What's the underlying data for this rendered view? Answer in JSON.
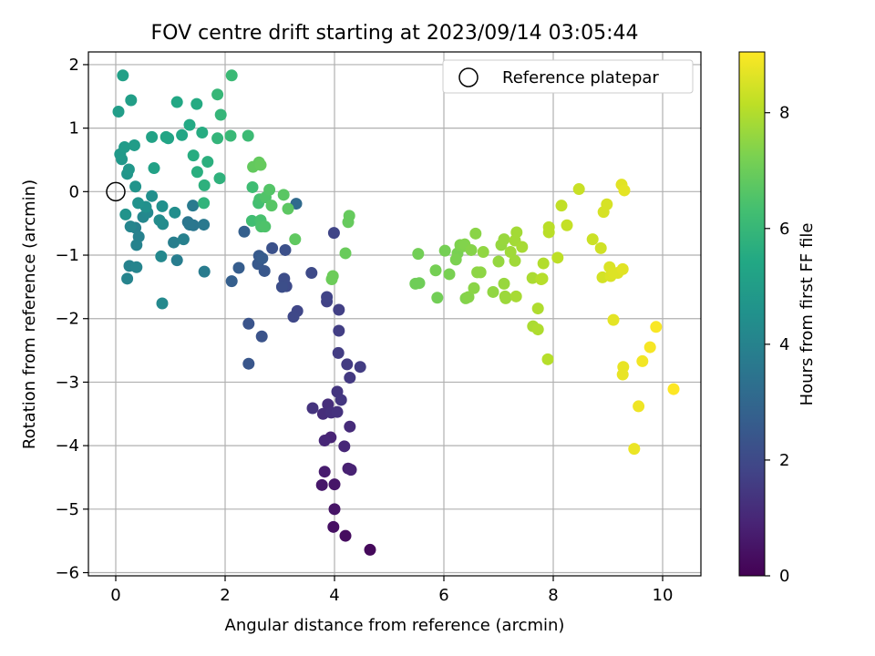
{
  "chart_data": {
    "type": "scatter",
    "title": "FOV centre drift starting at 2023/09/14 03:05:44",
    "xlabel": "Angular distance from reference (arcmin)",
    "ylabel": "Rotation from reference (arcmin)",
    "xlim": [
      -0.5,
      10.7
    ],
    "ylim": [
      -6.05,
      2.2
    ],
    "xticks": [
      "0",
      "2",
      "4",
      "6",
      "8",
      "10"
    ],
    "yticks": [
      "2",
      "1",
      "0",
      "−1",
      "−2",
      "−3",
      "−4",
      "−5",
      "−6"
    ],
    "grid": true,
    "legend": {
      "placement": "top-right",
      "entries": [
        "Reference platepar"
      ]
    },
    "reference_point": {
      "x": 0,
      "y": 0,
      "label": "Reference platepar"
    },
    "colorbar": {
      "label": "Hours from first FF file",
      "range": [
        0,
        9.05
      ],
      "ticks": [
        "0",
        "2",
        "4",
        "6",
        "8"
      ],
      "colormap": "viridis"
    },
    "points": [
      [
        4.65,
        -5.64,
        0.2
      ],
      [
        4.2,
        -5.42,
        0.3
      ],
      [
        3.98,
        -5.28,
        0.4
      ],
      [
        4.0,
        -5.0,
        0.5
      ],
      [
        4.0,
        -4.61,
        0.55
      ],
      [
        3.77,
        -4.62,
        0.6
      ],
      [
        3.82,
        -4.41,
        0.7
      ],
      [
        4.25,
        -4.36,
        0.8
      ],
      [
        4.3,
        -4.38,
        0.85
      ],
      [
        3.93,
        -3.87,
        0.9
      ],
      [
        3.82,
        -3.92,
        1.0
      ],
      [
        4.18,
        -4.01,
        1.0
      ],
      [
        4.28,
        -3.7,
        1.1
      ],
      [
        3.79,
        -3.5,
        1.15
      ],
      [
        3.88,
        -3.35,
        1.2
      ],
      [
        3.94,
        -3.48,
        1.25
      ],
      [
        4.05,
        -3.47,
        1.3
      ],
      [
        3.6,
        -3.41,
        1.35
      ],
      [
        4.05,
        -3.15,
        1.4
      ],
      [
        4.12,
        -3.28,
        1.45
      ],
      [
        4.28,
        -2.93,
        1.5
      ],
      [
        4.23,
        -2.72,
        1.55
      ],
      [
        4.47,
        -2.76,
        1.6
      ],
      [
        4.07,
        -2.54,
        1.6
      ],
      [
        4.08,
        -2.19,
        1.65
      ],
      [
        4.08,
        -1.86,
        1.7
      ],
      [
        3.86,
        -1.73,
        1.75
      ],
      [
        3.86,
        -1.66,
        1.8
      ],
      [
        3.99,
        -0.65,
        1.85
      ],
      [
        3.32,
        -1.88,
        1.9
      ],
      [
        3.25,
        -1.97,
        1.95
      ],
      [
        3.58,
        -1.28,
        2.0
      ],
      [
        3.12,
        -1.49,
        2.05
      ],
      [
        3.08,
        -1.37,
        2.1
      ],
      [
        3.04,
        -1.5,
        2.15
      ],
      [
        3.1,
        -0.92,
        2.2
      ],
      [
        2.86,
        -0.89,
        2.25
      ],
      [
        2.67,
        -2.28,
        2.3
      ],
      [
        2.43,
        -2.08,
        2.35
      ],
      [
        2.43,
        -2.71,
        2.4
      ],
      [
        2.72,
        -1.25,
        2.45
      ],
      [
        2.6,
        -1.14,
        2.5
      ],
      [
        2.62,
        -1.01,
        2.55
      ],
      [
        2.68,
        -1.05,
        2.6
      ],
      [
        2.25,
        -1.2,
        2.65
      ],
      [
        2.12,
        -1.41,
        2.7
      ],
      [
        2.35,
        -0.63,
        2.75
      ],
      [
        3.3,
        -0.19,
        3.1
      ],
      [
        1.32,
        -0.48,
        3.5
      ],
      [
        1.42,
        -0.53,
        3.55
      ],
      [
        1.35,
        -0.52,
        3.6
      ],
      [
        1.61,
        -0.52,
        3.65
      ],
      [
        1.41,
        -0.22,
        3.7
      ],
      [
        1.62,
        -1.26,
        3.75
      ],
      [
        1.12,
        -1.08,
        3.8
      ],
      [
        1.06,
        -0.8,
        3.85
      ],
      [
        1.24,
        -0.75,
        3.9
      ],
      [
        0.36,
        -0.57,
        3.9
      ],
      [
        0.42,
        -0.71,
        3.95
      ],
      [
        0.38,
        -0.84,
        4.0
      ],
      [
        0.25,
        -1.17,
        4.0
      ],
      [
        0.38,
        -1.19,
        4.05
      ],
      [
        0.21,
        -1.37,
        4.05
      ],
      [
        0.27,
        -0.55,
        4.1
      ],
      [
        0.5,
        -0.4,
        4.15
      ],
      [
        0.58,
        -0.33,
        4.2
      ],
      [
        0.83,
        -1.02,
        4.2
      ],
      [
        0.85,
        -1.76,
        4.25
      ],
      [
        0.86,
        -0.51,
        4.3
      ],
      [
        0.8,
        -0.45,
        4.35
      ],
      [
        1.08,
        -0.33,
        4.4
      ],
      [
        0.66,
        -0.07,
        4.45
      ],
      [
        0.85,
        -0.23,
        4.5
      ],
      [
        0.55,
        -0.24,
        4.5
      ],
      [
        0.41,
        -0.18,
        4.55
      ],
      [
        0.18,
        -0.36,
        4.6
      ],
      [
        0.36,
        0.08,
        4.65
      ],
      [
        0.21,
        0.28,
        4.7
      ],
      [
        0.24,
        0.35,
        4.75
      ],
      [
        0.11,
        0.51,
        4.8
      ],
      [
        0.08,
        0.59,
        4.85
      ],
      [
        0.16,
        0.7,
        4.9
      ],
      [
        0.34,
        0.73,
        4.95
      ],
      [
        0.05,
        1.26,
        5.0
      ],
      [
        0.28,
        1.44,
        5.05
      ],
      [
        0.13,
        1.83,
        5.1
      ],
      [
        0.7,
        0.37,
        5.15
      ],
      [
        0.66,
        0.86,
        5.2
      ],
      [
        0.96,
        0.84,
        5.25
      ],
      [
        0.92,
        0.86,
        5.3
      ],
      [
        1.21,
        0.89,
        5.35
      ],
      [
        1.12,
        1.41,
        5.4
      ],
      [
        1.35,
        1.05,
        5.45
      ],
      [
        1.48,
        1.38,
        5.5
      ],
      [
        1.58,
        0.93,
        5.55
      ],
      [
        1.42,
        0.57,
        5.6
      ],
      [
        1.49,
        0.31,
        5.65
      ],
      [
        1.68,
        0.47,
        5.7
      ],
      [
        1.62,
        0.1,
        5.75
      ],
      [
        1.9,
        0.21,
        5.8
      ],
      [
        1.61,
        -0.18,
        5.85
      ],
      [
        1.86,
        0.84,
        5.9
      ],
      [
        1.92,
        1.21,
        5.95
      ],
      [
        1.86,
        1.53,
        6.0
      ],
      [
        2.1,
        0.88,
        6.05
      ],
      [
        2.12,
        1.83,
        6.1
      ],
      [
        2.42,
        0.88,
        6.15
      ],
      [
        2.5,
        0.07,
        6.2
      ],
      [
        2.49,
        -0.46,
        6.25
      ],
      [
        2.61,
        -0.18,
        6.3
      ],
      [
        2.63,
        -0.12,
        6.35
      ],
      [
        2.65,
        -0.45,
        6.4
      ],
      [
        2.66,
        -0.55,
        6.45
      ],
      [
        2.73,
        -0.55,
        6.5
      ],
      [
        2.74,
        -0.09,
        6.55
      ],
      [
        2.81,
        0.03,
        6.6
      ],
      [
        2.85,
        -0.22,
        6.65
      ],
      [
        3.07,
        -0.05,
        6.7
      ],
      [
        3.15,
        -0.27,
        6.75
      ],
      [
        3.28,
        -0.75,
        6.8
      ],
      [
        2.51,
        0.39,
        6.85
      ],
      [
        2.62,
        0.46,
        6.85
      ],
      [
        2.65,
        0.42,
        6.9
      ],
      [
        4.25,
        -0.48,
        6.9
      ],
      [
        4.27,
        -0.38,
        6.9
      ],
      [
        4.2,
        -0.97,
        6.95
      ],
      [
        3.97,
        -1.33,
        7.0
      ],
      [
        3.95,
        -1.38,
        7.0
      ],
      [
        5.48,
        -1.45,
        7.05
      ],
      [
        5.55,
        -1.44,
        7.05
      ],
      [
        5.53,
        -0.98,
        7.1
      ],
      [
        5.88,
        -1.67,
        7.1
      ],
      [
        5.85,
        -1.24,
        7.15
      ],
      [
        6.02,
        -0.93,
        7.15
      ],
      [
        6.1,
        -1.3,
        7.2
      ],
      [
        6.25,
        -0.97,
        7.2
      ],
      [
        6.22,
        -1.07,
        7.25
      ],
      [
        6.3,
        -0.84,
        7.3
      ],
      [
        6.36,
        -0.86,
        7.3
      ],
      [
        6.38,
        -0.83,
        7.35
      ],
      [
        6.4,
        -1.68,
        7.35
      ],
      [
        6.45,
        -1.66,
        7.4
      ],
      [
        6.5,
        -0.92,
        7.4
      ],
      [
        6.55,
        -1.52,
        7.45
      ],
      [
        6.58,
        -0.66,
        7.45
      ],
      [
        6.61,
        -1.27,
        7.5
      ],
      [
        6.67,
        -1.27,
        7.5
      ],
      [
        6.72,
        -0.95,
        7.55
      ],
      [
        6.9,
        -1.58,
        7.55
      ],
      [
        7.0,
        -1.1,
        7.6
      ],
      [
        7.05,
        -0.84,
        7.6
      ],
      [
        7.1,
        -0.75,
        7.65
      ],
      [
        7.1,
        -1.45,
        7.65
      ],
      [
        7.12,
        -1.65,
        7.7
      ],
      [
        7.13,
        -1.68,
        7.7
      ],
      [
        7.22,
        -0.95,
        7.75
      ],
      [
        7.3,
        -1.09,
        7.75
      ],
      [
        7.3,
        -0.77,
        7.8
      ],
      [
        7.33,
        -0.64,
        7.8
      ],
      [
        7.43,
        -0.87,
        7.85
      ],
      [
        7.32,
        -1.65,
        7.85
      ],
      [
        7.62,
        -1.36,
        7.9
      ],
      [
        7.63,
        -2.12,
        7.9
      ],
      [
        7.72,
        -2.17,
        7.95
      ],
      [
        7.72,
        -1.84,
        7.95
      ],
      [
        7.8,
        -1.37,
        8.0
      ],
      [
        7.82,
        -1.13,
        8.0
      ],
      [
        7.78,
        -1.38,
        8.05
      ],
      [
        7.9,
        -2.64,
        8.05
      ],
      [
        7.92,
        -0.64,
        8.1
      ],
      [
        7.92,
        -0.56,
        8.1
      ],
      [
        8.08,
        -1.04,
        8.15
      ],
      [
        8.15,
        -0.22,
        8.2
      ],
      [
        8.25,
        -0.53,
        8.25
      ],
      [
        8.47,
        0.04,
        8.3
      ],
      [
        8.72,
        -0.75,
        8.35
      ],
      [
        8.87,
        -0.89,
        8.4
      ],
      [
        8.9,
        -1.35,
        8.45
      ],
      [
        8.92,
        -0.32,
        8.5
      ],
      [
        8.98,
        -0.2,
        8.5
      ],
      [
        9.03,
        -1.19,
        8.55
      ],
      [
        9.05,
        -1.33,
        8.55
      ],
      [
        9.1,
        -1.28,
        8.6
      ],
      [
        9.18,
        -1.28,
        8.6
      ],
      [
        9.27,
        -1.22,
        8.65
      ],
      [
        9.25,
        0.11,
        8.65
      ],
      [
        9.3,
        0.02,
        8.7
      ],
      [
        9.1,
        -2.02,
        8.7
      ],
      [
        9.28,
        -2.76,
        8.75
      ],
      [
        9.27,
        -2.88,
        8.75
      ],
      [
        9.48,
        -4.05,
        8.8
      ],
      [
        9.56,
        -3.38,
        8.85
      ],
      [
        9.63,
        -2.67,
        8.9
      ],
      [
        9.77,
        -2.45,
        8.95
      ],
      [
        9.88,
        -2.13,
        9.0
      ],
      [
        10.2,
        -3.11,
        9.05
      ]
    ]
  }
}
